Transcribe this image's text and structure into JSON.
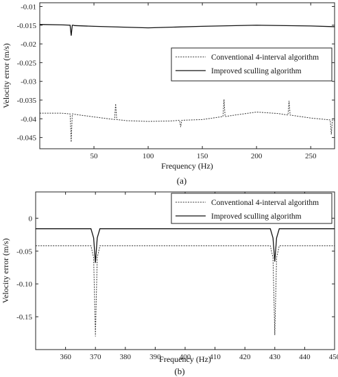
{
  "chart_data": [
    {
      "type": "line",
      "caption": "(a)",
      "xlabel": "Frequency (Hz)",
      "ylabel": "Velocity error (m/s)",
      "xlim": [
        0,
        272
      ],
      "ylim": [
        -0.048,
        -0.009
      ],
      "xticks": [
        50,
        100,
        150,
        200,
        250
      ],
      "xtick_labels": [
        "50",
        "100",
        "150",
        "200",
        "250"
      ],
      "yticks": [
        -0.01,
        -0.015,
        -0.02,
        -0.025,
        -0.03,
        -0.035,
        -0.04,
        -0.045
      ],
      "ytick_labels": [
        "-0.01",
        "-0.015",
        "-0.02",
        "-0.025",
        "-0.03",
        "-0.035",
        "-0.04",
        "-0.045"
      ],
      "grid": false,
      "legend_position": "right",
      "series": [
        {
          "name": "Conventional 4-interval algorithm",
          "style": "dotted",
          "color": "#333333",
          "x": [
            0,
            20,
            28,
            29,
            30,
            31,
            32,
            50,
            69,
            70,
            71,
            80,
            100,
            120,
            129,
            130,
            131,
            150,
            169,
            170,
            171,
            180,
            200,
            220,
            229,
            230,
            231,
            250,
            268,
            269,
            270,
            272
          ],
          "y": [
            -0.0385,
            -0.0385,
            -0.0387,
            -0.0462,
            -0.0387,
            -0.0387,
            -0.0388,
            -0.0395,
            -0.0402,
            -0.036,
            -0.0402,
            -0.0405,
            -0.0407,
            -0.0406,
            -0.0404,
            -0.0422,
            -0.0404,
            -0.0402,
            -0.0394,
            -0.0348,
            -0.0394,
            -0.039,
            -0.0382,
            -0.0386,
            -0.039,
            -0.0352,
            -0.039,
            -0.0398,
            -0.0403,
            -0.0442,
            -0.0403,
            -0.0404
          ]
        },
        {
          "name": "Improved sculling algorithm",
          "style": "solid",
          "color": "#111111",
          "x": [
            0,
            20,
            28,
            29,
            30,
            31,
            32,
            50,
            100,
            150,
            200,
            250,
            272
          ],
          "y": [
            -0.0148,
            -0.0149,
            -0.015,
            -0.0178,
            -0.015,
            -0.015,
            -0.0151,
            -0.0153,
            -0.0157,
            -0.0153,
            -0.015,
            -0.0152,
            -0.0154
          ]
        }
      ]
    },
    {
      "type": "line",
      "caption": "(b)",
      "xlabel": "Frequency (Hz)",
      "ylabel": "Velocity error (m/s)",
      "xlim": [
        350,
        450
      ],
      "ylim": [
        -0.2,
        0.04
      ],
      "xticks": [
        360,
        370,
        380,
        390,
        400,
        410,
        420,
        430,
        440,
        450
      ],
      "xtick_labels": [
        "360",
        "370",
        "380",
        "390",
        "400",
        "410",
        "420",
        "430",
        "440",
        "450"
      ],
      "yticks": [
        0,
        -0.05,
        -0.1,
        -0.15
      ],
      "ytick_labels": [
        "0",
        "-0.05",
        "-0.10",
        "-0.15"
      ],
      "grid": false,
      "legend_position": "top-right",
      "series": [
        {
          "name": "Conventional 4-interval algorithm",
          "style": "dotted",
          "color": "#333333",
          "x": [
            350,
            368.5,
            369.4,
            370.0,
            370.6,
            371.5,
            400,
            428.5,
            429.4,
            430.0,
            430.6,
            431.5,
            450
          ],
          "y": [
            -0.042,
            -0.042,
            -0.06,
            -0.18,
            -0.06,
            -0.042,
            -0.042,
            -0.042,
            -0.06,
            -0.178,
            -0.06,
            -0.042,
            -0.042
          ]
        },
        {
          "name": "Improved sculling algorithm",
          "style": "solid",
          "color": "#111111",
          "x": [
            350,
            368.5,
            369.4,
            370.0,
            370.6,
            371.5,
            400,
            428.5,
            429.4,
            430.0,
            430.6,
            431.5,
            450
          ],
          "y": [
            -0.016,
            -0.016,
            -0.03,
            -0.068,
            -0.03,
            -0.016,
            -0.016,
            -0.016,
            -0.03,
            -0.066,
            -0.03,
            -0.016,
            -0.016
          ]
        }
      ]
    }
  ]
}
